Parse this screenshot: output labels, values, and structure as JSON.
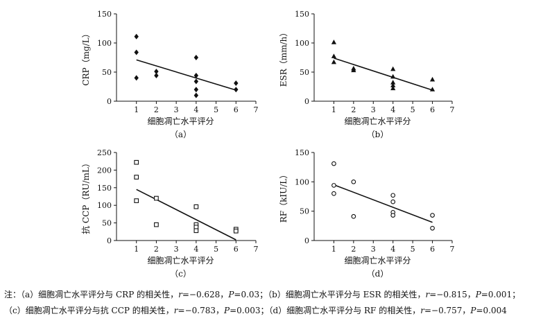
{
  "chart_data": [
    {
      "type": "scatter",
      "panel_label": "（a）",
      "xlabel": "细胞凋亡水平评分",
      "ylabel": "CRP（mg/L）",
      "xlim": [
        0,
        7
      ],
      "ylim": [
        0,
        150
      ],
      "xticks": [
        1,
        2,
        3,
        4,
        5,
        6,
        7
      ],
      "yticks": [
        0,
        50,
        100,
        150
      ],
      "marker": "diamond",
      "points": [
        [
          1,
          111
        ],
        [
          1,
          84
        ],
        [
          1,
          40
        ],
        [
          2,
          51
        ],
        [
          2,
          44
        ],
        [
          4,
          75
        ],
        [
          4,
          44
        ],
        [
          4,
          34
        ],
        [
          4,
          20
        ],
        [
          4,
          10
        ],
        [
          6,
          31
        ],
        [
          6,
          20
        ]
      ],
      "fit_line": [
        [
          1,
          71
        ],
        [
          6,
          19
        ]
      ]
    },
    {
      "type": "scatter",
      "panel_label": "（b）",
      "xlabel": "细胞凋亡水平评分",
      "ylabel": "ESR（mm/h）",
      "xlim": [
        0,
        7
      ],
      "ylim": [
        0,
        150
      ],
      "xticks": [
        1,
        2,
        3,
        4,
        5,
        6,
        7
      ],
      "yticks": [
        0,
        50,
        100,
        150
      ],
      "marker": "triangle",
      "points": [
        [
          1,
          101
        ],
        [
          1,
          77
        ],
        [
          1,
          67
        ],
        [
          2,
          56
        ],
        [
          2,
          53
        ],
        [
          4,
          55
        ],
        [
          4,
          42
        ],
        [
          4,
          32
        ],
        [
          4,
          27
        ],
        [
          4,
          22
        ],
        [
          6,
          37
        ],
        [
          6,
          20
        ]
      ],
      "fit_line": [
        [
          1,
          74
        ],
        [
          6,
          19
        ]
      ]
    },
    {
      "type": "scatter",
      "panel_label": "（c）",
      "xlabel": "细胞凋亡水平评分",
      "ylabel": "抗 CCP（RU/mL）",
      "xlim": [
        0,
        7
      ],
      "ylim": [
        0,
        250
      ],
      "xticks": [
        1,
        2,
        3,
        4,
        5,
        6,
        7
      ],
      "yticks": [
        0,
        50,
        100,
        150,
        200,
        250
      ],
      "marker": "square-open",
      "points": [
        [
          1,
          222
        ],
        [
          1,
          180
        ],
        [
          1,
          113
        ],
        [
          2,
          120
        ],
        [
          2,
          45
        ],
        [
          4,
          96
        ],
        [
          4,
          45
        ],
        [
          4,
          38
        ],
        [
          4,
          28
        ],
        [
          6,
          32
        ],
        [
          6,
          27
        ]
      ],
      "fit_line": [
        [
          1,
          145
        ],
        [
          6,
          2
        ]
      ]
    },
    {
      "type": "scatter",
      "panel_label": "（d）",
      "xlabel": "细胞凋亡水平评分",
      "ylabel": "RF（kIU/L）",
      "xlim": [
        0,
        7
      ],
      "ylim": [
        0,
        150
      ],
      "xticks": [
        1,
        2,
        3,
        4,
        5,
        6,
        7
      ],
      "yticks": [
        0,
        50,
        100,
        150
      ],
      "marker": "circle-open",
      "points": [
        [
          1,
          131
        ],
        [
          1,
          94
        ],
        [
          1,
          80
        ],
        [
          2,
          100
        ],
        [
          2,
          41
        ],
        [
          4,
          77
        ],
        [
          4,
          66
        ],
        [
          4,
          48
        ],
        [
          4,
          43
        ],
        [
          6,
          43
        ],
        [
          6,
          21
        ]
      ],
      "fit_line": [
        [
          1,
          95
        ],
        [
          6,
          31
        ]
      ]
    }
  ],
  "caption": {
    "line1": {
      "note": "注：",
      "a": "（a）细胞凋亡水平评分与 CRP 的相关性，",
      "a_r": "r",
      "a_rv": "=−0.628，",
      "a_p": "P",
      "a_pv": "=0.03；",
      "b": "（b）细胞凋亡水平评分与 ESR 的相关性，",
      "b_r": "r",
      "b_rv": "=−0.815，",
      "b_p": "P",
      "b_pv": "=0.001；"
    },
    "line2": {
      "c": "（c）细胞凋亡水平评分与抗 CCP 的相关性，",
      "c_r": "r",
      "c_rv": "=−0.783，",
      "c_p": "P",
      "c_pv": "=0.003；",
      "d": "（d）细胞凋亡水平评分与 RF 的相关性，",
      "d_r": "r",
      "d_rv": "=−0.757，",
      "d_p": "P",
      "d_pv": "=0.004"
    }
  }
}
